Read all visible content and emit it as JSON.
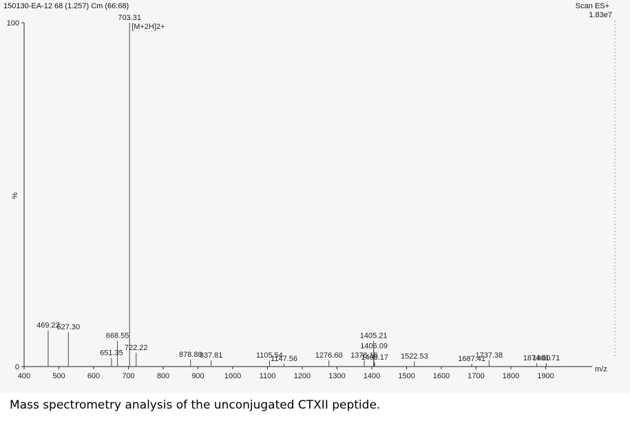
{
  "header": {
    "sample": "150130-EA-12 68 (1.257) Cm (66:68)",
    "scan_mode": "Scan ES+",
    "intensity": "1.83e7"
  },
  "caption": "Mass spectrometry analysis of the unconjugated CTXII peptide.",
  "chart_data": {
    "type": "bar",
    "title": "",
    "xlabel": "m/z",
    "ylabel": "%",
    "xlim": [
      400,
      2000
    ],
    "ylim": [
      0,
      100
    ],
    "x_ticks": [
      400,
      500,
      600,
      700,
      800,
      900,
      1000,
      1100,
      1200,
      1300,
      1400,
      1500,
      1600,
      1700,
      1800,
      1900
    ],
    "y_ticks": [
      0,
      100
    ],
    "grid": false,
    "annotations": [
      {
        "text": "[M+2H]2+",
        "x": 703.31
      }
    ],
    "peaks": [
      {
        "mz": 469.22,
        "label": "469.22",
        "intensity": 10.5
      },
      {
        "mz": 527.3,
        "label": "527.30",
        "intensity": 10
      },
      {
        "mz": 651.35,
        "label": "651.35",
        "intensity": 2.5
      },
      {
        "mz": 668.55,
        "label": "668.55",
        "intensity": 7.5
      },
      {
        "mz": 703.31,
        "label": "703.31",
        "intensity": 100
      },
      {
        "mz": 722.22,
        "label": "722.22",
        "intensity": 4
      },
      {
        "mz": 878.8,
        "label": "878.80",
        "intensity": 2
      },
      {
        "mz": 937.81,
        "label": "937.81",
        "intensity": 1.8
      },
      {
        "mz": 1105.54,
        "label": "1105.54",
        "intensity": 1.8
      },
      {
        "mz": 1147.56,
        "label": "1147.56",
        "intensity": 0.8
      },
      {
        "mz": 1276.6,
        "label": "1276.60",
        "intensity": 1.8
      },
      {
        "mz": 1378.16,
        "label": "1378.16",
        "intensity": 1.8
      },
      {
        "mz": 1405.21,
        "label": "1405.21",
        "intensity": 7.5
      },
      {
        "mz": 1406.09,
        "label": "1406.09",
        "intensity": 4.5
      },
      {
        "mz": 1408.17,
        "label": "1408.17",
        "intensity": 1.2
      },
      {
        "mz": 1522.53,
        "label": "1522.53",
        "intensity": 1.5
      },
      {
        "mz": 1687.41,
        "label": "1687.41",
        "intensity": 0.8
      },
      {
        "mz": 1737.38,
        "label": "1737.38",
        "intensity": 1.8
      },
      {
        "mz": 1874.6,
        "label": "1874.60",
        "intensity": 1
      },
      {
        "mz": 1901.71,
        "label": "1901.71",
        "intensity": 1
      }
    ]
  }
}
